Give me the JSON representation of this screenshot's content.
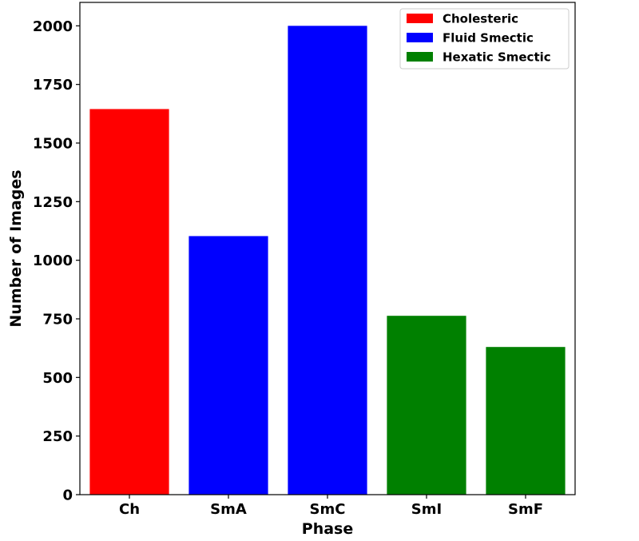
{
  "chart_data": {
    "type": "bar",
    "title": "",
    "xlabel": "Phase",
    "ylabel": "Number of Images",
    "ylim": [
      0,
      2100
    ],
    "yticks": [
      0,
      250,
      500,
      750,
      1000,
      1250,
      1500,
      1750,
      2000
    ],
    "categories": [
      "Ch",
      "SmA",
      "SmC",
      "SmI",
      "SmF"
    ],
    "values": [
      1645,
      1103,
      2000,
      763,
      630
    ],
    "bar_groups": [
      "Cholesteric",
      "Fluid Smectic",
      "Fluid Smectic",
      "Hexatic Smectic",
      "Hexatic Smectic"
    ],
    "legend": {
      "placement": "top-right",
      "entries": [
        {
          "label": "Cholesteric",
          "color": "#ff0000"
        },
        {
          "label": "Fluid Smectic",
          "color": "#0000ff"
        },
        {
          "label": "Hexatic Smectic",
          "color": "#008000"
        }
      ]
    },
    "grid": false
  }
}
